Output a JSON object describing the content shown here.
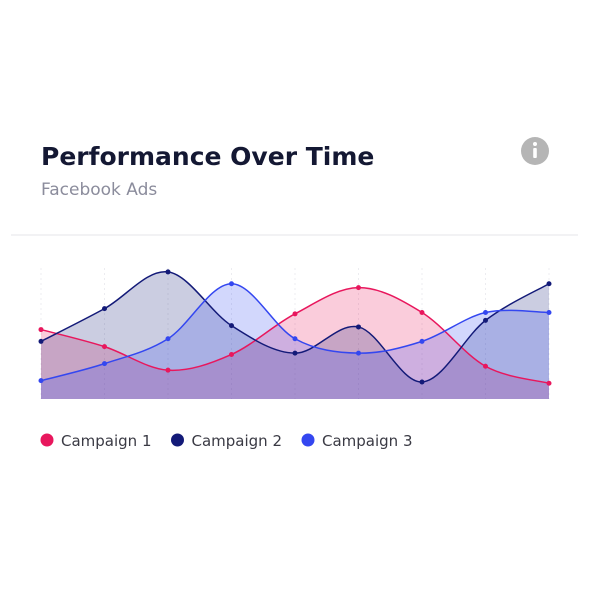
{
  "chart_data": {
    "type": "area",
    "title": "Performance Over Time",
    "subtitle": "Facebook Ads",
    "categories": [
      null,
      null,
      null,
      null,
      null,
      null,
      null,
      null,
      null
    ],
    "series": [
      {
        "name": "Campaign 1",
        "color": "#e8175d",
        "values": [
          53,
          40,
          22,
          34,
          65,
          85,
          66,
          25,
          12
        ]
      },
      {
        "name": "Campaign 2",
        "color": "#131a78",
        "values": [
          44,
          69,
          97,
          56,
          35,
          55,
          13,
          60,
          88
        ]
      },
      {
        "name": "Campaign 3",
        "color": "#3447f0",
        "values": [
          14,
          27,
          46,
          88,
          46,
          35,
          44,
          66,
          66
        ]
      }
    ],
    "ylim": [
      0,
      100
    ],
    "grid": true
  }
}
